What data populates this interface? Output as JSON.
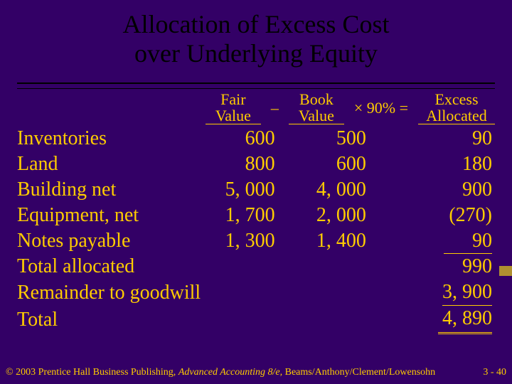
{
  "colors": {
    "background": "#330066",
    "text": "#ffcc00",
    "title": "#000000",
    "rule": "#000000"
  },
  "title": {
    "line1": "Allocation of Excess Cost",
    "line2": "over Underlying Equity",
    "fontsize": 36
  },
  "header": {
    "fair": "Fair\nValue",
    "minus": "–",
    "book": "Book\nValue",
    "mult": "× 90% =",
    "excess": "Excess\nAllocated",
    "fontsize": 22
  },
  "table": {
    "fontsize": 28,
    "rows": [
      {
        "label": "Inventories",
        "fair": "600",
        "book": "500",
        "excess": "90"
      },
      {
        "label": "Land",
        "fair": "800",
        "book": "600",
        "excess": "180"
      },
      {
        "label": "Building net",
        "fair": "5, 000",
        "book": "4, 000",
        "excess": "900"
      },
      {
        "label": "Equipment, net",
        "fair": "1, 700",
        "book": "2, 000",
        "excess": "(270)"
      },
      {
        "label": "Notes payable",
        "fair": "1, 300",
        "book": "1, 400",
        "excess": "90",
        "excess_underline": true
      },
      {
        "label": "Total allocated",
        "excess": "990"
      },
      {
        "label": "Remainder to goodwill",
        "excess": "3, 900",
        "excess_underline": true
      },
      {
        "label": "Total",
        "excess": "4, 890",
        "excess_double": true
      }
    ]
  },
  "footer": {
    "copyright": "© 2003 Prentice Hall Business Publishing, ",
    "book_title": "Advanced Accounting 8/e,",
    "authors": " Beams/Anthony/Clement/Lowensohn",
    "page": "3 - 40",
    "fontsize": 14
  }
}
